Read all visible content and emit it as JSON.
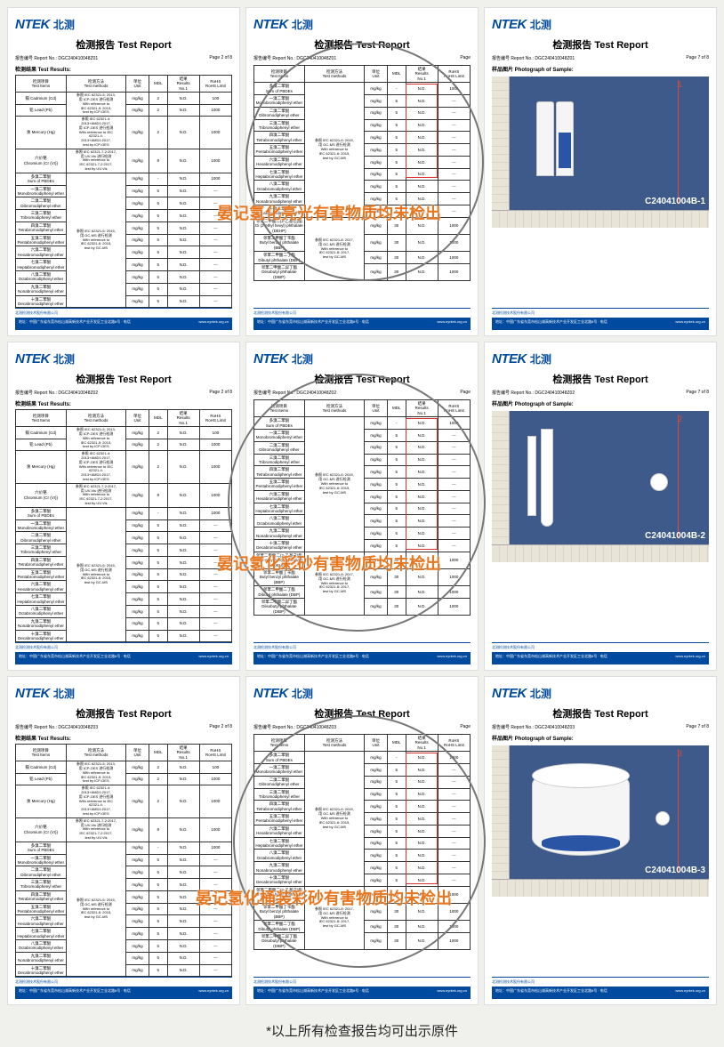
{
  "logo": {
    "en": "NTEK",
    "cn": "北测"
  },
  "title": "检测报告  Test Report",
  "report_no_label": "报告编号 Report No.:",
  "report_prefix": "DGC24041004",
  "section_results": "检测结果 Test Results:",
  "section_photo": "样品图片 Photograph of Sample:",
  "footer_company": "北测检测技术股份有限公司",
  "footer_addr": "地址：中国广东省东莞市松山湖高新技术产业开发区工业北路6号 · 电话",
  "footer_web": "www.nyntek.org.cn",
  "cols": {
    "item": "检测项目\\nTest Items",
    "method": "检测方法\\nTest methods",
    "unit": "单位\\nUnit",
    "mdl": "MDL",
    "result": "结果\\nResults\\nNo.1",
    "limit": "RoHS\\nRoHS Limit"
  },
  "unit_val": "mg/kg",
  "nd": "N.D.",
  "dash": "---",
  "method_icp": "参照 IEC 62321-5: 2013,\\n用 ICP-OES 进行检测\\nWith reference to\\nIEC 62321-5: 2013,\\ntest by ICP-OES",
  "method_hg": "参照 IEC 62321-4:\\n2013+AMD1:2017,\\n用 ICP-OES 进行检测\\nWith reference to IEC\\n62321-4:\\n2013+AMD1:2017,\\ntest by ICP-OES",
  "method_cr": "参照 IEC 62321-7-2:2017,\\n用 UV-Vis 进行检测\\nWith reference to\\nIEC 62321-7-2:2017,\\ntest by UV-Vis",
  "method_pbde": "参照 IEC 62321-6: 2015,\\n用 GC-MS 进行检测\\nWith reference to\\nIEC 62321-6: 2015,\\ntest by GC-MS",
  "method_phthalate": "参照 IEC 62321-8: 2017,\\n用 GC-MS 进行检测\\nWith reference to\\nIEC 62321-8: 2017,\\ntest by GC-MS",
  "items_page_a": [
    {
      "name": "镉 Cadmium (Cd)",
      "mdl": "2",
      "limit": "100"
    },
    {
      "name": "铅 Lead (Pb)",
      "mdl": "2",
      "limit": "1000"
    },
    {
      "name": "汞 Mercury (Hg)",
      "mdl": "2",
      "limit": "1000"
    },
    {
      "name": "六价铬\\nChromium (Cr (VI))",
      "mdl": "8",
      "limit": "1000"
    },
    {
      "name": "多溴二苯醚\\nSum of PBDEs",
      "mdl": "-",
      "limit": "1000"
    },
    {
      "name": "一溴二苯醚\\nMonobromodiphenyl ether",
      "mdl": "5",
      "limit": "---"
    },
    {
      "name": "二溴二苯醚\\nDibromodiphenyl ether",
      "mdl": "5",
      "limit": "---"
    },
    {
      "name": "三溴二苯醚\\nTribromodiphenyl ether",
      "mdl": "5",
      "limit": "---"
    },
    {
      "name": "四溴二苯醚\\nTetrabromodiphenyl ether",
      "mdl": "5",
      "limit": "---"
    },
    {
      "name": "五溴二苯醚\\nPentabromodiphenyl ether",
      "mdl": "5",
      "limit": "---"
    },
    {
      "name": "六溴二苯醚\\nHexabromodiphenyl ether",
      "mdl": "5",
      "limit": "---"
    },
    {
      "name": "七溴二苯醚\\nHeptabromodiphenyl ether",
      "mdl": "5",
      "limit": "---"
    },
    {
      "name": "八溴二苯醚\\nOctabromodiphenyl ether",
      "mdl": "5",
      "limit": "---"
    },
    {
      "name": "九溴二苯醚\\nNonabromodiphenyl ether",
      "mdl": "5",
      "limit": "---"
    },
    {
      "name": "十溴二苯醚\\nDecabromodiphenyl ether",
      "mdl": "5",
      "limit": "---"
    }
  ],
  "items_page_b": [
    {
      "name": "多溴二苯醚\\nSum of PBDEs",
      "mdl": "-",
      "limit": "1000"
    },
    {
      "name": "一溴二苯醚\\nMonobromodiphenyl ether",
      "mdl": "5",
      "limit": "---"
    },
    {
      "name": "二溴二苯醚\\nDibromodiphenyl ether",
      "mdl": "5",
      "limit": "---"
    },
    {
      "name": "三溴二苯醚\\nTribromodiphenyl ether",
      "mdl": "5",
      "limit": "---"
    },
    {
      "name": "四溴二苯醚\\nTetrabromodiphenyl ether",
      "mdl": "5",
      "limit": "---"
    },
    {
      "name": "五溴二苯醚\\nPentabromodiphenyl ether",
      "mdl": "5",
      "limit": "---"
    },
    {
      "name": "六溴二苯醚\\nHexabromodiphenyl ether",
      "mdl": "5",
      "limit": "---"
    },
    {
      "name": "七溴二苯醚\\nHeptabromodiphenyl ether",
      "mdl": "5",
      "limit": "---"
    },
    {
      "name": "八溴二苯醚\\nOctabromodiphenyl ether",
      "mdl": "5",
      "limit": "---"
    },
    {
      "name": "九溴二苯醚\\nNonabromodiphenyl ether",
      "mdl": "5",
      "limit": "---"
    },
    {
      "name": "十溴二苯醚\\nDecabromodiphenyl ether",
      "mdl": "5",
      "limit": "---"
    },
    {
      "name": "邻苯二甲酸二(2-乙基己)酯\\nDi (2-ethyl hexyl) phthalate (DEHP)",
      "mdl": "30",
      "limit": "1000"
    },
    {
      "name": "邻苯二甲酸丁苄酯\\nButyl benzyl phthalate (BBP)",
      "mdl": "30",
      "limit": "1000"
    },
    {
      "name": "邻苯二甲酸二丁酯\\nDibutyl phthalate (DBP)",
      "mdl": "30",
      "limit": "1000"
    },
    {
      "name": "邻苯二甲酸二异丁酯\\nDiisobutyl phthalate (DIBP)",
      "mdl": "30",
      "limit": "1000"
    }
  ],
  "overlays": [
    {
      "text": "晏记氢化亮光有害物质均未检出",
      "product": "亮光"
    },
    {
      "text": "晏记氢化彩砂有害物质均未检出",
      "product": "彩砂"
    },
    {
      "text": "晏记氢化桶装彩砂有害物质均未检出",
      "product": "桶装彩砂"
    }
  ],
  "photo_ids": [
    "C24041004B-1",
    "C24041004B-2",
    "C24041004B-3"
  ],
  "page_labels": {
    "a": "Page 2 of 8",
    "b": "Page",
    "c": "Page 7 of 8"
  },
  "caption": "*以上所有检查报告均可出示原件",
  "colors": {
    "brand": "#004a9f",
    "accent_text": "#e8761f",
    "red_box": "#e03030",
    "circle": "#777777",
    "photo_bg": "#3d5a8a"
  },
  "report_suffixes": [
    "8Z01",
    "8Z02",
    "8Z03"
  ]
}
